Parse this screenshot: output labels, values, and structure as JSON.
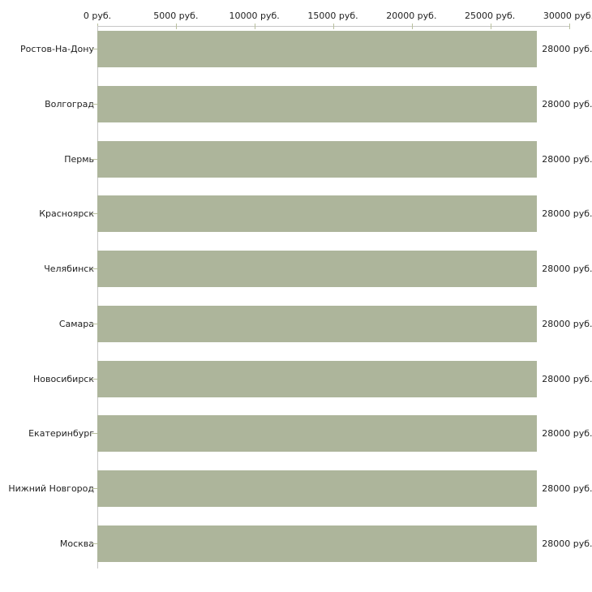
{
  "chart_data": {
    "type": "bar",
    "orientation": "horizontal",
    "title": "",
    "xlabel": "",
    "ylabel": "",
    "grid": false,
    "legend": false,
    "categories": [
      "Ростов-На-Дону",
      "Волгоград",
      "Пермь",
      "Красноярск",
      "Челябинск",
      "Самара",
      "Новосибирск",
      "Екатеринбург",
      "Нижний Новгород",
      "Москва"
    ],
    "values": [
      28000,
      28000,
      28000,
      28000,
      28000,
      28000,
      28000,
      28000,
      28000,
      28000
    ],
    "value_labels": [
      "28000 руб.",
      "28000 руб.",
      "28000 руб.",
      "28000 руб.",
      "28000 руб.",
      "28000 руб.",
      "28000 руб.",
      "28000 руб.",
      "28000 руб.",
      "28000 руб."
    ],
    "x_axis": {
      "position": "top",
      "min": 0,
      "max": 30000,
      "tick_values": [
        0,
        5000,
        10000,
        15000,
        20000,
        25000,
        30000
      ],
      "tick_labels": [
        "0 руб.",
        "5000 руб.",
        "10000 руб.",
        "15000 руб.",
        "20000 руб.",
        "25000 руб.",
        "30000 руб."
      ]
    },
    "colors": {
      "bar": "#adb59b",
      "axis_line": "#c6c6c6",
      "tick": "#b9c09e",
      "text": "#222222"
    }
  }
}
